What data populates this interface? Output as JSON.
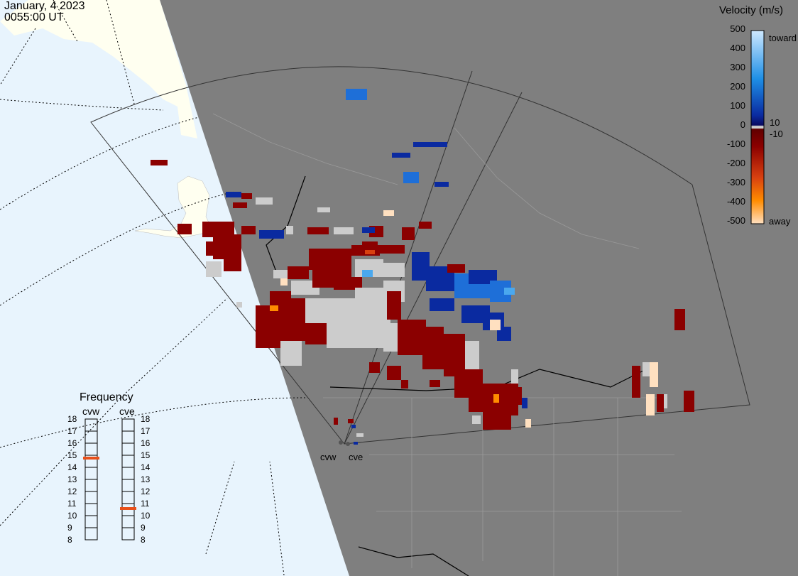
{
  "header": {
    "date": "January, 4 2023",
    "time": "0055:00 UT"
  },
  "legend": {
    "title": "Velocity (m/s)",
    "ticks": [
      "500",
      "400",
      "300",
      "200",
      "100",
      "0",
      "-100",
      "-200",
      "-300",
      "-400",
      "-500"
    ],
    "toward_label": "toward",
    "away_label": "away",
    "plus10_label": "10",
    "minus10_label": "-10",
    "colors": {
      "toward_light": "#cfe9ff",
      "toward_mid": "#1e8fe6",
      "toward_dark": "#0a2aa0",
      "zero": "#d0d0d0",
      "away_dark": "#8b0000",
      "away_mid": "#d84010",
      "away_light": "#ffe0c0"
    }
  },
  "frequency": {
    "title": "Frequency",
    "radars": [
      "cvw",
      "cve"
    ],
    "scale": [
      "18",
      "17",
      "16",
      "15",
      "14",
      "13",
      "12",
      "11",
      "10",
      "9",
      "8"
    ],
    "cvw_value": 15,
    "cve_value": 11
  },
  "stations": {
    "cvw_label": "cvw",
    "cve_label": "cve"
  },
  "map_colors": {
    "ocean": "#e8f4fd",
    "land_day": "#fffff0",
    "night": "#7f7f7f",
    "ground_scatter": "#cccccc",
    "marker": "#e8501a"
  }
}
